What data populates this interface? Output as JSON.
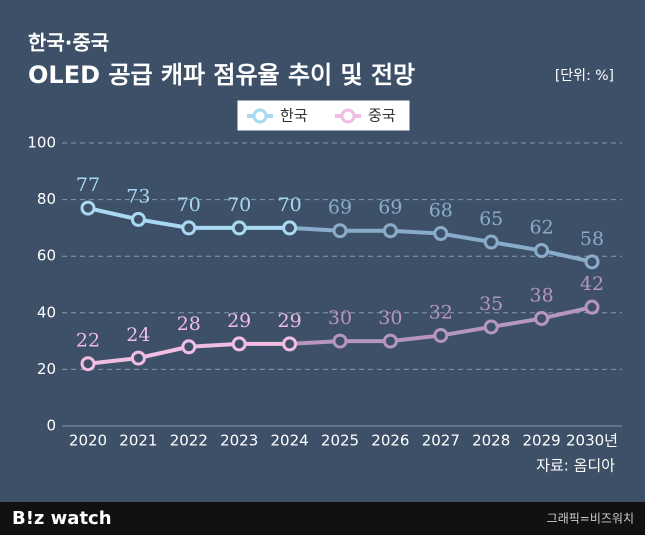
{
  "chart_data": {
    "type": "line",
    "subtitle": "한국·중국",
    "title": "OLED 공급 캐파 점유율 추이 및 전망",
    "unit_label": "[단위: %]",
    "source": "자료: 옴디아",
    "categories": [
      "2020",
      "2021",
      "2022",
      "2023",
      "2024",
      "2025",
      "2026",
      "2027",
      "2028",
      "2029",
      "2030년"
    ],
    "forecast_from": "2025",
    "series": [
      {
        "name": "한국",
        "color": "#a9d9f2",
        "forecast_color": "#8aaccb",
        "values": [
          77,
          73,
          70,
          70,
          70,
          69,
          69,
          68,
          65,
          62,
          58
        ]
      },
      {
        "name": "중국",
        "color": "#f2bde3",
        "forecast_color": "#b796bd",
        "values": [
          22,
          24,
          28,
          29,
          29,
          30,
          30,
          32,
          35,
          38,
          42
        ]
      }
    ],
    "ylim": [
      0,
      100
    ],
    "yticks": [
      0,
      20,
      40,
      60,
      80,
      100
    ],
    "grid": true
  },
  "footer": {
    "logo": "B!z watch",
    "credit": "그래픽=비즈워치"
  }
}
